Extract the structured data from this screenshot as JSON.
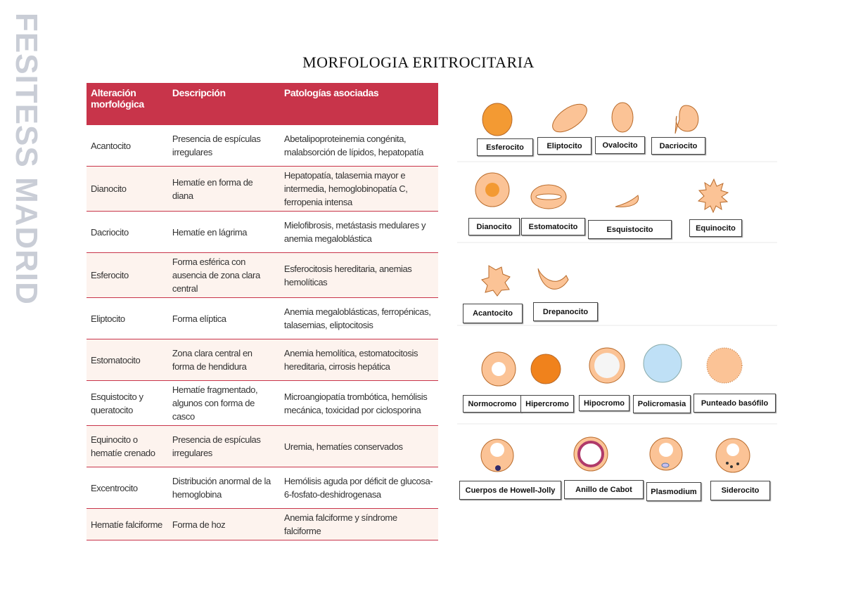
{
  "watermark": "FESITESS MADRID",
  "title": "MORFOLOGIA ERITROCITARIA",
  "table": {
    "header": [
      "Alteración morfológica",
      "Descripción",
      "Patologías asociadas"
    ],
    "rows": [
      [
        "Acantocito",
        "Presencia de espículas irregulares",
        "Abetalipoproteinemia congénita, malabsorción de lípidos, hepatopatía"
      ],
      [
        "Dianocito",
        "Hematíe en forma de diana",
        "Hepatopatía, talasemia mayor e intermedia, hemoglobinopatía C, ferropenia intensa"
      ],
      [
        "Dacriocito",
        "Hematíe en lágrima",
        "Mielofibrosis, metástasis medulares y anemia megaloblástica"
      ],
      [
        "Esferocito",
        "Forma esférica con ausencia de zona clara central",
        "Esferocitosis hereditaria, anemias hemolíticas"
      ],
      [
        "Eliptocito",
        "Forma elíptica",
        "Anemia megaloblásticas, ferropénicas, talasemias, eliptocitosis"
      ],
      [
        "Estomatocito",
        "Zona clara central en forma de hendidura",
        "Anemia hemolítica, estomatocitosis hereditaria, cirrosis hepática"
      ],
      [
        "Esquistocito y queratocito",
        "Hematíe fragmentado, algunos con forma de casco",
        "Microangiopatía trombótica, hemólisis mecánica, toxicidad por ciclosporina"
      ],
      [
        "Equinocito o hematíe crenado",
        "Presencia de espículas irregulares",
        "Uremia, hematíes conservados"
      ],
      [
        "Excentrocito",
        "Distribución anormal de la hemoglobina",
        "Hemólisis aguda por déficit de glucosa-6-fosfato-deshidrogenasa"
      ],
      [
        "Hematíe falciforme",
        "Forma de hoz",
        "Anemia falciforme y síndrome falciforme"
      ]
    ]
  },
  "diagram": {
    "labels": [
      "Esferocito",
      "Eliptocito",
      "Ovalocito",
      "Dacriocito",
      "Dianocito",
      "Estomatocito",
      "Esquistocito",
      "Equinocito",
      "Acantocito",
      "Drepanocito",
      "Normocromo",
      "Hipercromo",
      "Hipocromo",
      "Policromasia",
      "Punteado basófilo",
      "Cuerpos de Howell-Jolly",
      "Anillo de Cabot",
      "Plasmodium",
      "Siderocito"
    ]
  }
}
